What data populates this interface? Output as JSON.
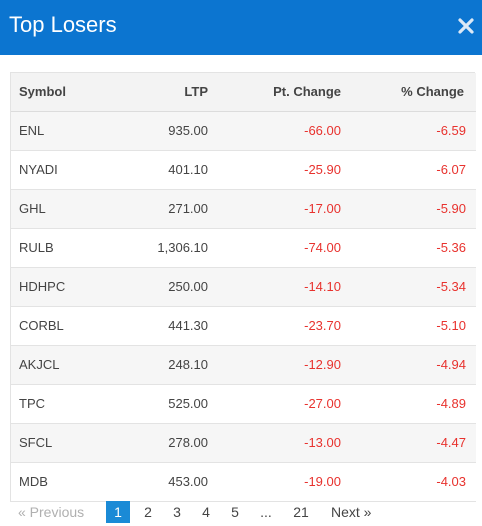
{
  "modal": {
    "title": "Top Losers",
    "close_icon": "close-icon"
  },
  "table": {
    "headers": {
      "symbol": "Symbol",
      "ltp": "LTP",
      "pt_change": "Pt. Change",
      "pct_change": "% Change"
    },
    "rows": [
      {
        "symbol": "ENL",
        "ltp": "935.00",
        "pt_change": "-66.00",
        "pct_change": "-6.59"
      },
      {
        "symbol": "NYADI",
        "ltp": "401.10",
        "pt_change": "-25.90",
        "pct_change": "-6.07"
      },
      {
        "symbol": "GHL",
        "ltp": "271.00",
        "pt_change": "-17.00",
        "pct_change": "-5.90"
      },
      {
        "symbol": "RULB",
        "ltp": "1,306.10",
        "pt_change": "-74.00",
        "pct_change": "-5.36"
      },
      {
        "symbol": "HDHPC",
        "ltp": "250.00",
        "pt_change": "-14.10",
        "pct_change": "-5.34"
      },
      {
        "symbol": "CORBL",
        "ltp": "441.30",
        "pt_change": "-23.70",
        "pct_change": "-5.10"
      },
      {
        "symbol": "AKJCL",
        "ltp": "248.10",
        "pt_change": "-12.90",
        "pct_change": "-4.94"
      },
      {
        "symbol": "TPC",
        "ltp": "525.00",
        "pt_change": "-27.00",
        "pct_change": "-4.89"
      },
      {
        "symbol": "SFCL",
        "ltp": "278.00",
        "pt_change": "-13.00",
        "pct_change": "-4.47"
      },
      {
        "symbol": "MDB",
        "ltp": "453.00",
        "pt_change": "-19.00",
        "pct_change": "-4.03"
      }
    ]
  },
  "pagination": {
    "prev_label": "« Previous",
    "pages": [
      "1",
      "2",
      "3",
      "4",
      "5",
      "...",
      "21"
    ],
    "active_page": "1",
    "next_label": "Next »"
  },
  "colors": {
    "header_bg": "#0c75d0",
    "negative": "#e8322e",
    "active_page_bg": "#1a8ad6"
  }
}
